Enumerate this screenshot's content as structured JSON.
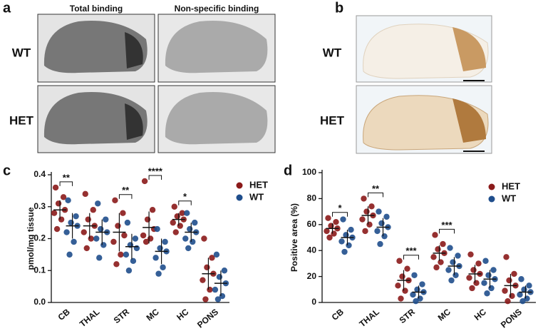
{
  "panel_labels": [
    "a",
    "b",
    "c",
    "d"
  ],
  "panel_a": {
    "column_titles": [
      "Total binding",
      "Non-specific binding"
    ],
    "row_labels": [
      "WT",
      "HET"
    ]
  },
  "panel_b": {
    "row_labels": [
      "WT",
      "HET"
    ]
  },
  "chart_data": [
    {
      "type": "dotplot",
      "y_label": "pmol/mg tissue",
      "categories": [
        "CB",
        "THAL",
        "STR",
        "MC",
        "HC",
        "PONS"
      ],
      "ylim": [
        0,
        0.4
      ],
      "yticks": [
        {
          "value": 0,
          "label": "0.0"
        },
        0.1,
        0.2,
        0.3,
        0.4
      ],
      "legend": "top-right",
      "significance": [
        "**",
        null,
        "**",
        "****",
        "*",
        null
      ],
      "series": [
        {
          "name": "HET",
          "color": "#8b1a1a",
          "values": [
            0.29,
            0.24,
            0.22,
            0.235,
            0.26,
            0.09
          ],
          "sd": [
            0.03,
            0.04,
            0.06,
            0.05,
            0.02,
            0.05
          ],
          "points": [
            [
              0.36,
              0.33,
              0.31,
              0.29,
              0.28,
              0.26,
              0.23
            ],
            [
              0.34,
              0.29,
              0.26,
              0.24,
              0.22,
              0.2,
              0.17
            ],
            [
              0.32,
              0.28,
              0.24,
              0.21,
              0.19,
              0.15,
              0.12
            ],
            [
              0.38,
              0.29,
              0.26,
              0.23,
              0.21,
              0.2,
              0.19
            ],
            [
              0.3,
              0.28,
              0.27,
              0.26,
              0.25,
              0.24,
              0.22
            ],
            [
              0.2,
              0.14,
              0.11,
              0.09,
              0.07,
              0.04,
              0.01
            ]
          ]
        },
        {
          "name": "WT",
          "color": "#1f4e8c",
          "values": [
            0.24,
            0.22,
            0.175,
            0.16,
            0.22,
            0.06
          ],
          "sd": [
            0.04,
            0.04,
            0.04,
            0.04,
            0.03,
            0.04
          ],
          "points": [
            [
              0.32,
              0.27,
              0.25,
              0.24,
              0.22,
              0.19,
              0.15
            ],
            [
              0.31,
              0.26,
              0.23,
              0.22,
              0.2,
              0.18,
              0.14
            ],
            [
              0.25,
              0.2,
              0.18,
              0.17,
              0.15,
              0.13,
              0.1
            ],
            [
              0.23,
              0.19,
              0.17,
              0.16,
              0.14,
              0.11,
              0.09
            ],
            [
              0.28,
              0.25,
              0.23,
              0.22,
              0.2,
              0.19,
              0.17
            ],
            [
              0.15,
              0.1,
              0.08,
              0.06,
              0.04,
              0.02,
              0.01
            ]
          ]
        }
      ]
    },
    {
      "type": "dotplot",
      "y_label": "Positive area (%)",
      "categories": [
        "CB",
        "THAL",
        "STR",
        "MC",
        "HC",
        "PONS"
      ],
      "ylim": [
        0,
        100
      ],
      "yticks": [
        0,
        20,
        40,
        60,
        80,
        100
      ],
      "legend": "top-right",
      "significance": [
        "*",
        "**",
        "***",
        "***",
        null,
        null
      ],
      "series": [
        {
          "name": "HET",
          "color": "#8b1a1a",
          "values": [
            57,
            67,
            17,
            38,
            22,
            13
          ],
          "sd": [
            4,
            7,
            8,
            6,
            7,
            9
          ],
          "points": [
            [
              65,
              62,
              59,
              57,
              55,
              53,
              50
            ],
            [
              80,
              74,
              70,
              67,
              64,
              60,
              55
            ],
            [
              32,
              26,
              20,
              17,
              13,
              9,
              3
            ],
            [
              52,
              45,
              41,
              38,
              35,
              31,
              27
            ],
            [
              37,
              30,
              25,
              22,
              19,
              15,
              11
            ],
            [
              35,
              22,
              17,
              13,
              9,
              5,
              1
            ]
          ]
        },
        {
          "name": "WT",
          "color": "#1f4e8c",
          "values": [
            50,
            58,
            8,
            28,
            18,
            8
          ],
          "sd": [
            6,
            7,
            5,
            7,
            7,
            5
          ],
          "points": [
            [
              64,
              56,
              52,
              50,
              47,
              44,
              39
            ],
            [
              70,
              66,
              61,
              58,
              55,
              51,
              45
            ],
            [
              21,
              14,
              10,
              8,
              6,
              3,
              1
            ],
            [
              42,
              36,
              31,
              28,
              25,
              21,
              17
            ],
            [
              32,
              25,
              21,
              18,
              15,
              11,
              7
            ],
            [
              18,
              13,
              10,
              8,
              6,
              3,
              1
            ]
          ]
        }
      ]
    }
  ]
}
